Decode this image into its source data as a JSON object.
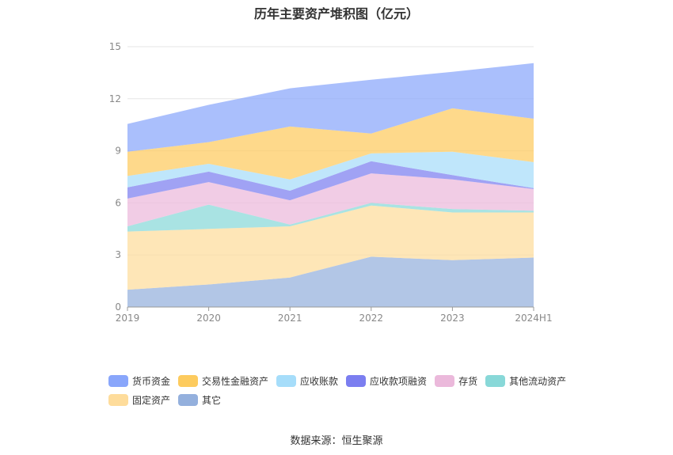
{
  "chart_data": {
    "type": "area",
    "stacked": true,
    "title": "历年主要资产堆积图（亿元）",
    "categories": [
      "2019",
      "2020",
      "2021",
      "2022",
      "2023",
      "2024H1"
    ],
    "ylim": [
      0,
      15
    ],
    "yticks": [
      "0",
      "3",
      "6",
      "9",
      "12",
      "15"
    ],
    "grid": true,
    "legend_position": "bottom",
    "series": [
      {
        "name": "其它",
        "color": "#94b0dd",
        "values": [
          1.0,
          1.3,
          1.7,
          2.9,
          2.7,
          2.85
        ]
      },
      {
        "name": "固定资产",
        "color": "#fedc9b",
        "values": [
          3.35,
          3.2,
          2.95,
          2.95,
          2.75,
          2.6
        ]
      },
      {
        "name": "其他流动资产",
        "color": "#88d8d8",
        "values": [
          0.3,
          1.4,
          0.1,
          0.15,
          0.2,
          0.1
        ]
      },
      {
        "name": "存货",
        "color": "#ebb9db",
        "values": [
          1.6,
          1.3,
          1.4,
          1.7,
          1.7,
          1.25
        ]
      },
      {
        "name": "应收款项融资",
        "color": "#7b7ef0",
        "values": [
          0.65,
          0.6,
          0.55,
          0.7,
          0.25,
          0.05
        ]
      },
      {
        "name": "应收账款",
        "color": "#a6ddfa",
        "values": [
          0.65,
          0.45,
          0.65,
          0.45,
          1.35,
          1.5
        ]
      },
      {
        "name": "交易性金融资产",
        "color": "#fdcb5e",
        "values": [
          1.4,
          1.25,
          3.05,
          1.15,
          2.5,
          2.5
        ]
      },
      {
        "name": "货币资金",
        "color": "#89a6fb",
        "values": [
          1.6,
          2.15,
          2.2,
          3.1,
          2.1,
          3.2
        ]
      }
    ]
  },
  "legend": [
    {
      "name": "货币资金",
      "color": "#89a6fb"
    },
    {
      "name": "交易性金融资产",
      "color": "#fdcb5e"
    },
    {
      "name": "应收账款",
      "color": "#a6ddfa"
    },
    {
      "name": "应收款项融资",
      "color": "#7b7ef0"
    },
    {
      "name": "存货",
      "color": "#ebb9db"
    },
    {
      "name": "其他流动资产",
      "color": "#88d8d8"
    },
    {
      "name": "固定资产",
      "color": "#fedc9b"
    },
    {
      "name": "其它",
      "color": "#94b0dd"
    }
  ],
  "source_note": "数据来源：恒生聚源"
}
